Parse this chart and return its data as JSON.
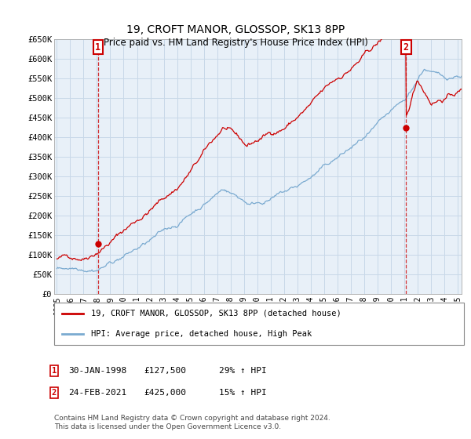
{
  "title": "19, CROFT MANOR, GLOSSOP, SK13 8PP",
  "subtitle": "Price paid vs. HM Land Registry's House Price Index (HPI)",
  "ylabel_ticks": [
    "£0",
    "£50K",
    "£100K",
    "£150K",
    "£200K",
    "£250K",
    "£300K",
    "£350K",
    "£400K",
    "£450K",
    "£500K",
    "£550K",
    "£600K",
    "£650K"
  ],
  "ylim": [
    0,
    650000
  ],
  "xlim_start": 1994.8,
  "xlim_end": 2025.3,
  "sale1_year": 1998.08,
  "sale1_price": 127500,
  "sale1_label": "1",
  "sale1_date_str": "30-JAN-1998",
  "sale1_price_str": "£127,500",
  "sale1_hpi_str": "29% ↑ HPI",
  "sale2_year": 2021.15,
  "sale2_price": 425000,
  "sale2_label": "2",
  "sale2_date_str": "24-FEB-2021",
  "sale2_price_str": "£425,000",
  "sale2_hpi_str": "15% ↑ HPI",
  "legend_line1": "19, CROFT MANOR, GLOSSOP, SK13 8PP (detached house)",
  "legend_line2": "HPI: Average price, detached house, High Peak",
  "footer": "Contains HM Land Registry data © Crown copyright and database right 2024.\nThis data is licensed under the Open Government Licence v3.0.",
  "red_color": "#cc0000",
  "blue_color": "#7aaad0",
  "bg_color": "#ffffff",
  "plot_bg_color": "#e8f0f8",
  "grid_color": "#c8d8e8"
}
